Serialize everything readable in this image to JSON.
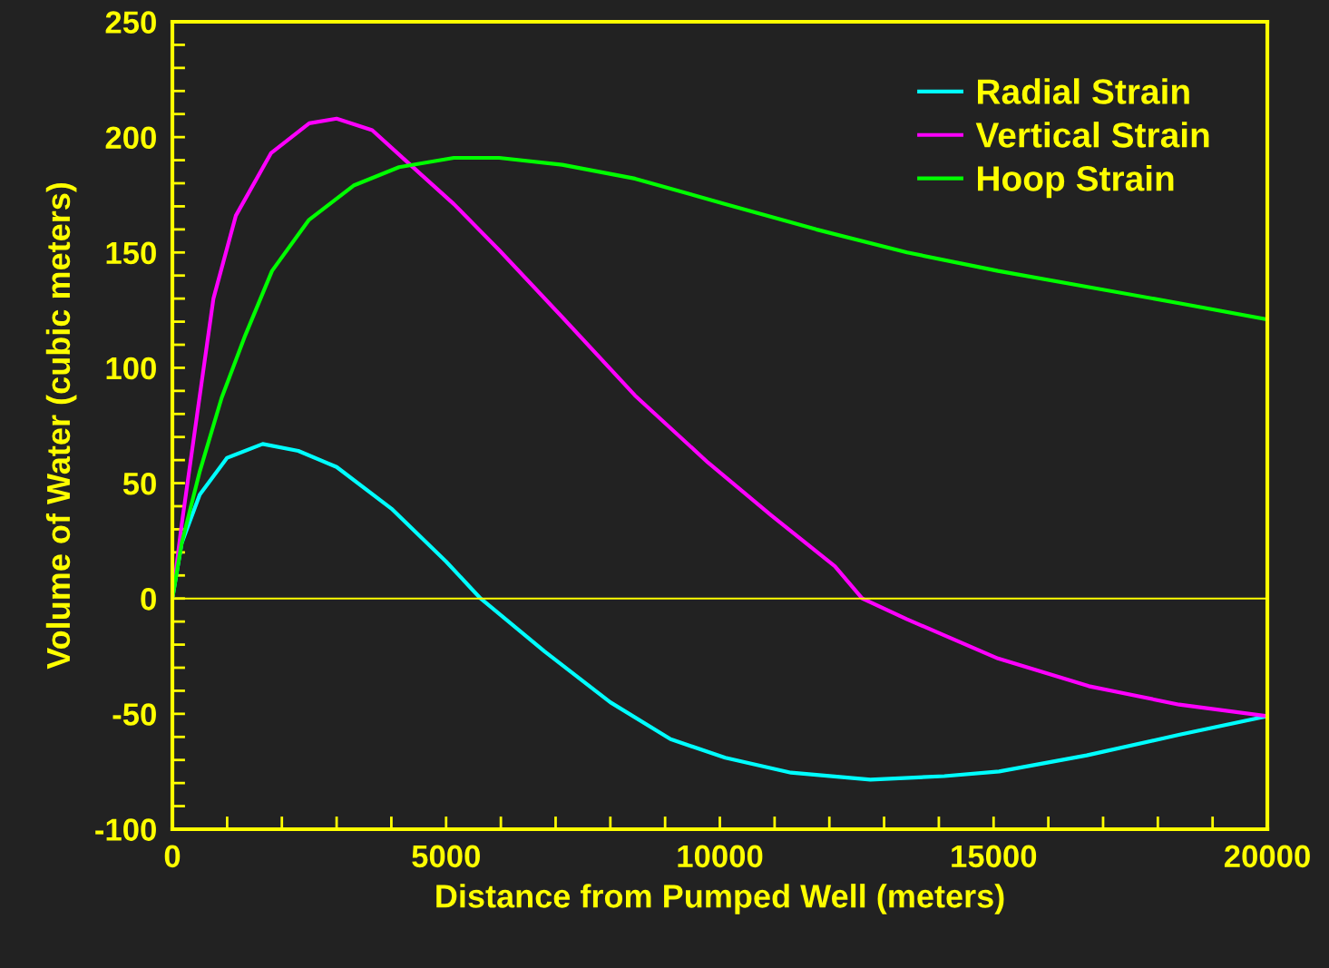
{
  "chart_data": {
    "type": "line",
    "xlabel": "Distance from Pumped Well (meters)",
    "ylabel": "Volume of Water (cubic meters)",
    "xlim": [
      0,
      20000
    ],
    "ylim": [
      -100,
      250
    ],
    "xticks": [
      0,
      5000,
      10000,
      15000,
      20000
    ],
    "yticks": [
      -100,
      -50,
      0,
      50,
      100,
      150,
      200,
      250
    ],
    "grid": false,
    "legend": "top right",
    "marker": "none",
    "line_style": "solid",
    "ref_lines": [
      {
        "axis": "y",
        "value": 0,
        "color": "#ffff00"
      }
    ],
    "series": [
      {
        "name": "Radial Strain",
        "color": "#00ffff",
        "x": [
          0,
          170,
          500,
          1000,
          1650,
          2300,
          3000,
          4000,
          5000,
          5630,
          6800,
          8000,
          9100,
          10100,
          11300,
          12750,
          14100,
          15100,
          16700,
          18400,
          20000
        ],
        "values": [
          0,
          24,
          45,
          61,
          67,
          64,
          57,
          39,
          16,
          0,
          -23,
          -45,
          -61,
          -69,
          -75.5,
          -78.5,
          -77,
          -75,
          -68,
          -59,
          -51
        ]
      },
      {
        "name": "Vertical Strain",
        "color": "#ff00ff",
        "x": [
          0,
          170,
          400,
          750,
          1160,
          1800,
          2500,
          3000,
          3650,
          4300,
          5140,
          5970,
          7120,
          8450,
          9780,
          10940,
          12100,
          12600,
          13420,
          15080,
          16740,
          18390,
          20000
        ],
        "values": [
          0,
          32,
          71,
          130,
          166,
          193,
          206,
          208,
          203,
          189,
          171,
          151,
          122,
          88,
          59,
          36,
          14,
          0,
          -9,
          -26,
          -38,
          -46,
          -51
        ]
      },
      {
        "name": "Hoop Strain",
        "color": "#00ff00",
        "x": [
          0,
          170,
          500,
          900,
          1330,
          1820,
          2490,
          3310,
          4140,
          5140,
          5970,
          7120,
          8450,
          10100,
          11760,
          13420,
          15080,
          16740,
          18390,
          20000
        ],
        "values": [
          0,
          24,
          55,
          87,
          114,
          142,
          164,
          179,
          187,
          191,
          191,
          188,
          182,
          171,
          160,
          150,
          142,
          135,
          128,
          121
        ]
      }
    ]
  }
}
